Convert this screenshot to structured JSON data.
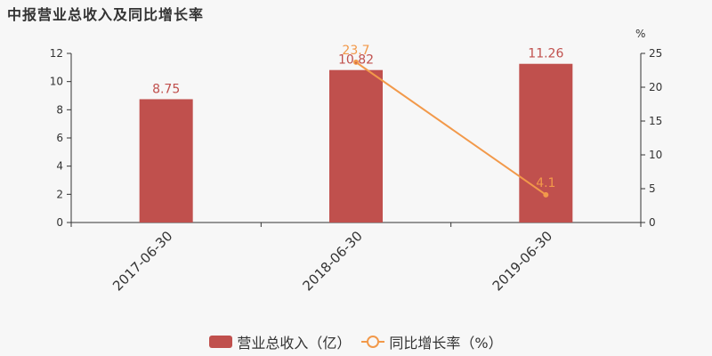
{
  "title": "中报营业总收入及同比增长率",
  "colors": {
    "bar": "#c0504d",
    "line": "#f2994a",
    "axis": "#333333"
  },
  "legend": {
    "bar_label": "营业总收入（亿）",
    "line_label": "同比增长率（%）"
  },
  "chart_data": {
    "type": "bar",
    "categories": [
      "2017-06-30",
      "2018-06-30",
      "2019-06-30"
    ],
    "series": [
      {
        "name": "营业总收入（亿）",
        "type": "bar",
        "axis": "left",
        "values": [
          8.75,
          10.82,
          11.26
        ],
        "labels": [
          "8.75",
          "10.82",
          "11.26"
        ]
      },
      {
        "name": "同比增长率（%）",
        "type": "line",
        "axis": "right",
        "values": [
          null,
          23.7,
          4.1
        ],
        "labels": [
          "",
          "23.7",
          "4.1"
        ]
      }
    ],
    "y_left": {
      "range": [
        0,
        12
      ],
      "ticks": [
        "0",
        "2",
        "4",
        "6",
        "8",
        "10",
        "12"
      ],
      "label": ""
    },
    "y_right": {
      "range": [
        0,
        25
      ],
      "ticks": [
        "0",
        "5",
        "10",
        "15",
        "20",
        "25"
      ],
      "label": "%"
    },
    "grid": false,
    "legend_position": "bottom"
  }
}
